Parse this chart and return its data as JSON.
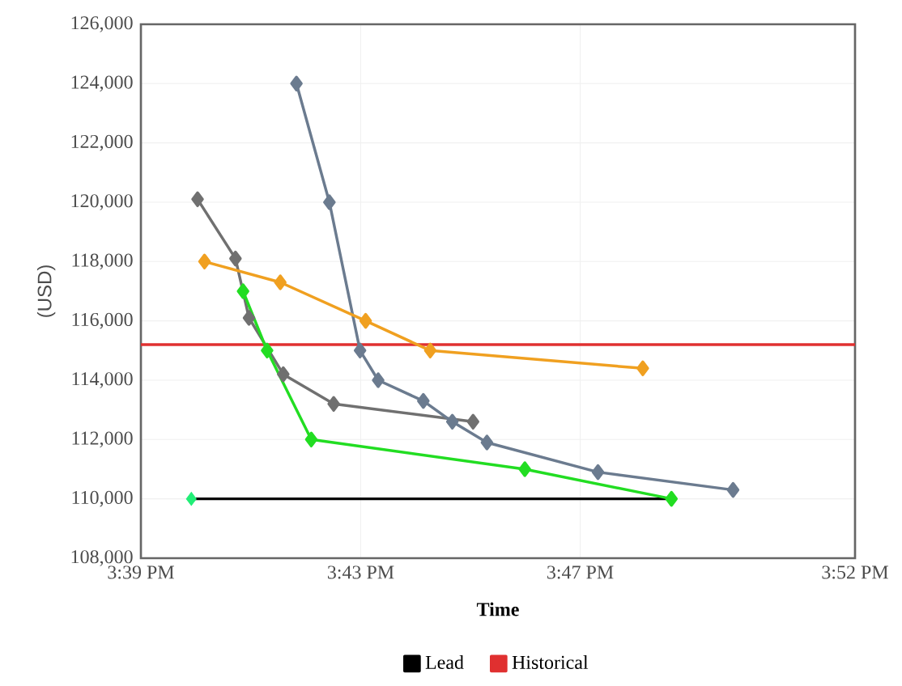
{
  "chart_data": {
    "type": "line",
    "xlabel": "Time",
    "ylabel": "(USD)",
    "xlim": [
      15.65,
      15.8667
    ],
    "ylim": [
      108000,
      126000
    ],
    "xticks": [
      {
        "value": 15.65,
        "label": "3:39 PM"
      },
      {
        "value": 15.7167,
        "label": "3:43 PM"
      },
      {
        "value": 15.7833,
        "label": "3:47 PM"
      },
      {
        "value": 15.8667,
        "label": "3:52 PM"
      }
    ],
    "yticks": [
      {
        "value": 108000,
        "label": "108,000"
      },
      {
        "value": 110000,
        "label": "110,000"
      },
      {
        "value": 112000,
        "label": "112,000"
      },
      {
        "value": 114000,
        "label": "114,000"
      },
      {
        "value": 116000,
        "label": "116,000"
      },
      {
        "value": 118000,
        "label": "118,000"
      },
      {
        "value": 120000,
        "label": "120,000"
      },
      {
        "value": 122000,
        "label": "122,000"
      },
      {
        "value": 124000,
        "label": "124,000"
      },
      {
        "value": 126000,
        "label": "126,000"
      }
    ],
    "grid": true,
    "legend": "bottom",
    "marker": "diamond",
    "series": [
      {
        "name": "Lead",
        "color": "#000000",
        "marker": "none",
        "x": [
          15.6653,
          15.811
        ],
        "values": [
          110000,
          110000
        ]
      },
      {
        "name": "Historical",
        "color": "#e03030",
        "marker": "none",
        "x": [
          15.65,
          15.8667
        ],
        "values": [
          115200,
          115200
        ]
      },
      {
        "color": "#707070",
        "x": [
          15.6672,
          15.6787,
          15.6828,
          15.6932,
          15.7085,
          15.7508
        ],
        "values": [
          120100,
          118100,
          116100,
          114200,
          113200,
          112600
        ]
      },
      {
        "color": "#6b7b8f",
        "x": [
          15.6972,
          15.7072,
          15.7165,
          15.722,
          15.7357,
          15.7445,
          15.755,
          15.7887,
          15.8297
        ],
        "values": [
          124000,
          120000,
          115000,
          114000,
          113300,
          112600,
          111900,
          110900,
          110300
        ]
      },
      {
        "color": "#f0a020",
        "x": [
          15.6693,
          15.6923,
          15.7182,
          15.7378,
          15.8023
        ],
        "values": [
          118000,
          117300,
          116000,
          115000,
          114400
        ]
      },
      {
        "color": "#22dd22",
        "x": [
          15.681,
          15.6883,
          15.7017,
          15.7665,
          15.811
        ],
        "values": [
          117000,
          115000,
          112000,
          111000,
          110000
        ]
      },
      {
        "type": "scatter",
        "color": "#22ee77",
        "x": [
          15.6653
        ],
        "values": [
          110000
        ]
      }
    ]
  }
}
